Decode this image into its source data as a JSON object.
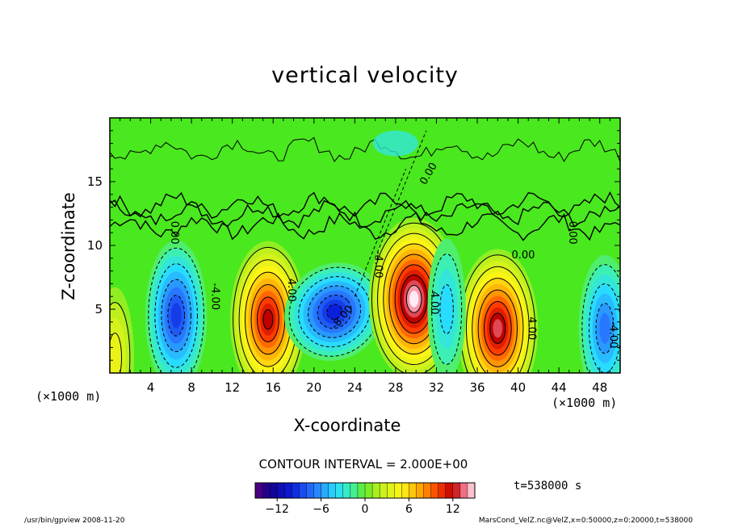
{
  "chart_data": {
    "type": "heatmap",
    "subtype": "filled contour",
    "title": "vertical velocity",
    "xlabel": "X-coordinate",
    "ylabel": "Z-coordinate",
    "x_unit_left": "(×1000 m)",
    "x_unit_right": "(×1000 m)",
    "xlim": [
      0,
      50
    ],
    "ylim": [
      0,
      20
    ],
    "xticks": [
      4,
      8,
      12,
      16,
      20,
      24,
      28,
      32,
      36,
      40,
      44,
      48
    ],
    "yticks": [
      5,
      10,
      15
    ],
    "contour_interval_text": "CONTOUR INTERVAL = 2.000E+00",
    "contour_labels": [
      "4.00",
      "0.00",
      "-4.00",
      "-8.00"
    ],
    "time_text": "t=538000 s",
    "colorbar": {
      "min": -15,
      "max": 15,
      "step": 1,
      "ticks": [
        -12,
        -6,
        0,
        6,
        12
      ]
    },
    "cells": [
      {
        "x": 6.5,
        "z": 4.5,
        "w": -9
      },
      {
        "x": 15.5,
        "z": 4.2,
        "w": 12
      },
      {
        "x": 22,
        "z": 4.8,
        "w": -10
      },
      {
        "x": 29.8,
        "z": 5.8,
        "w": 15
      },
      {
        "x": 38,
        "z": 3.5,
        "w": 13
      },
      {
        "x": 48.5,
        "z": 3.5,
        "w": -7
      },
      {
        "x": 0.5,
        "z": 1.2,
        "w": 4
      },
      {
        "x": 33,
        "z": 5,
        "w": -4
      }
    ],
    "grid": false,
    "legend": "colorbar bottom-center"
  },
  "footer": {
    "left": "/usr/bin/gpview   2008-11-20",
    "right": "MarsCond_VelZ.nc@VelZ,x=0:50000,z=0:20000,t=538000"
  },
  "colors": {
    "background": "#00ff33",
    "negative_max": "#000080",
    "positive_max": "#ffffff",
    "zero": "#66ee22",
    "contour": "#000000"
  }
}
